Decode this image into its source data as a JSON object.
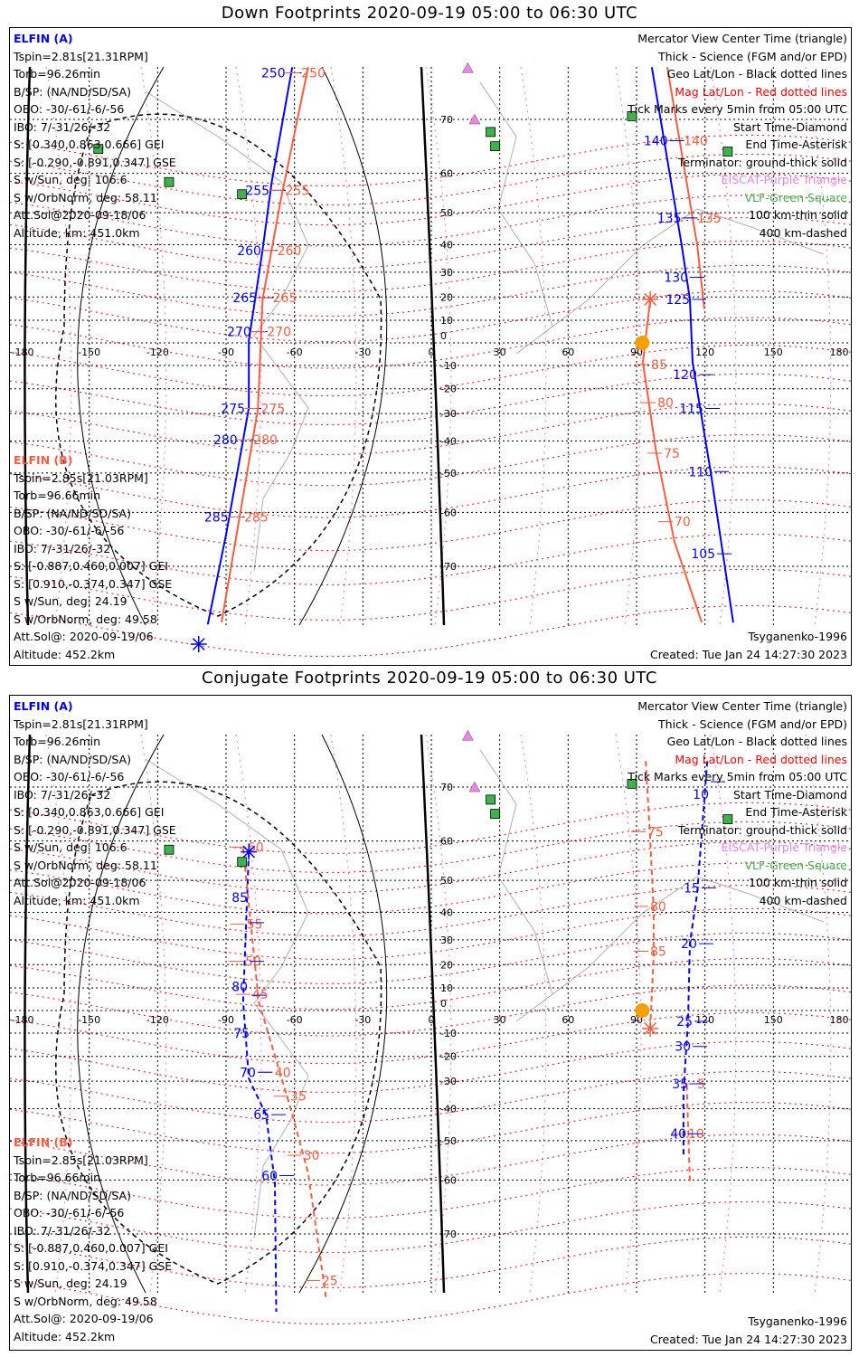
{
  "colors": {
    "elfin_a": "#0000ff",
    "elfin_b": "#ff5a3c",
    "mag_grid": "#ff0000",
    "geo_grid": "#000000",
    "eiscat": "#ee82ee",
    "vlf": "#3cb44b",
    "sun": "#f5a000",
    "coast": "#b0b0b0"
  },
  "panels": [
    {
      "title": "Down Footprints 2020-09-19 05:00 to 06:30 UTC",
      "line_style": "solid",
      "elfin_a": {
        "header": "ELFIN (A)",
        "lines": [
          "Tspin=2.81s[21.31RPM]",
          "Torb=96.26min",
          "B/SP: (NA/ND/SD/SA)",
          "OBO: -30/-61/-6/-56",
          "IBO: 7/-31/26/-32",
          "S: [0.340,0.863,0.666] GEI",
          "S: [-0.290,-0.891,0.347] GSE",
          "S w/Sun, deg: 106.6",
          "S w/OrbNorm, deg: 58.11",
          "Att.Sol@2020-09-18/06",
          "Altitude, km: 451.0km"
        ]
      },
      "elfin_b": {
        "header": "ELFIN (B)",
        "lines": [
          "Tspin=2.85s[21.03RPM]",
          "Torb=96.66min",
          "B/SP: (NA/ND/SD/SA)",
          "OBO: -30/-61/-6/-56",
          "IBO: 7/-31/26/-32",
          "S: [-0.887,0.460,0.007] GEI",
          "S: [0.910,-0.374,0.347] GSE",
          "S w/Sun, deg: 24.19",
          "S w/OrbNorm, deg: 49.58",
          "Att.Sol@: 2020-09-19/06",
          "Altitude: 452.2km"
        ]
      },
      "legend": [
        "Mercator View Center Time (triangle)",
        "Thick - Science (FGM and/or EPD)",
        "Geo Lat/Lon - Black dotted lines",
        "Mag Lat/Lon - Red dotted lines",
        "Tick Marks every 5min from 05:00 UTC",
        "Start Time-Diamond",
        "End Time-Asterisk",
        "Terminator: ground-thick solid",
        "EISCAT-Purple Triangle",
        "VLF-Green Square",
        "100 km-thin solid",
        "400 km-dashed"
      ],
      "model": "Tsyganenko-1996",
      "created": "Created: Tue Jan 24 14:27:30 2023"
    },
    {
      "title": "Conjugate Footprints 2020-09-19 05:00 to 06:30 UTC",
      "line_style": "dashed",
      "elfin_a": {
        "header": "ELFIN (A)",
        "lines": [
          "Tspin=2.81s[21.31RPM]",
          "Torb=96.26min",
          "B/SP: (NA/ND/SD/SA)",
          "OBO: -30/-61/-6/-56",
          "IBO: 7/-31/26/-32",
          "S: [0.340,0.863,0.666] GEI",
          "S: [-0.290,-0.891,0.347] GSE",
          "S w/Sun, deg: 106.6",
          "S w/OrbNorm, deg: 58.11",
          "Att.Sol@2020-09-18/06",
          "Altitude, km: 451.0km"
        ]
      },
      "elfin_b": {
        "header": "ELFIN (B)",
        "lines": [
          "Tspin=2.85s[21.03RPM]",
          "Torb=96.66min",
          "B/SP: (NA/ND/SD/SA)",
          "OBO: -30/-61/-6/-56",
          "IBO: 7/-31/26/-32",
          "S: [-0.887,0.460,0.007] GEI",
          "S: [0.910,-0.374,0.347] GSE",
          "S w/Sun, deg: 24.19",
          "S w/OrbNorm, deg: 49.58",
          "Att.Sol@: 2020-09-19/06",
          "Altitude: 452.2km"
        ]
      },
      "legend": [
        "Mercator View Center Time (triangle)",
        "Thick - Science (FGM and/or EPD)",
        "Geo Lat/Lon - Black dotted lines",
        "Mag Lat/Lon - Red dotted lines",
        "Tick Marks every 5min from 05:00 UTC",
        "Start Time-Diamond",
        "End Time-Asterisk",
        "Terminator: ground-thick solid",
        "EISCAT-Purple Triangle",
        "VLF-Green Square",
        "100 km-thin solid",
        "400 km-dashed"
      ],
      "model": "Tsyganenko-1996",
      "created": "Created: Tue Jan 24 14:27:30 2023"
    }
  ],
  "chart_data": [
    {
      "type": "line",
      "projection": "mercator",
      "title": "Down Footprints 2020-09-19 05:00 to 06:30 UTC",
      "xlim": [
        -180,
        180
      ],
      "ylim": [
        -80,
        80
      ],
      "lon_ticks": [
        "-180",
        "-150",
        "-120",
        "-90",
        "-60",
        "-30",
        "0",
        "30",
        "60",
        "90",
        "120",
        "150",
        "180"
      ],
      "lat_ticks": [
        "70",
        "60",
        "50",
        "40",
        "30",
        "20",
        "10",
        "0",
        "-10",
        "-20",
        "-30",
        "-40",
        "-50",
        "-60",
        "-70"
      ],
      "series": [
        {
          "name": "ELFIN A",
          "color": "elfin_a",
          "segments": [
            [
              [
                -61,
                76.6
              ],
              [
                -70,
                58
              ],
              [
                -74,
                38.2
              ],
              [
                -80,
                1
              ],
              [
                -80,
                -27.8
              ],
              [
                -85,
                -49.6
              ],
              [
                -90,
                -64.6
              ],
              [
                -98,
                -77.2
              ]
            ],
            [
              [
                96.7,
                76.6
              ],
              [
                109.8,
                39.8
              ],
              [
                113.4,
                19
              ],
              [
                114.6,
                -8.8
              ],
              [
                122.5,
                -49.6
              ],
              [
                132.4,
                -77
              ]
            ]
          ]
        },
        {
          "name": "ELFIN B",
          "color": "elfin_b",
          "segments": [
            [
              [
                -54,
                76.6
              ],
              [
                -66,
                53.5
              ],
              [
                -74,
                19
              ],
              [
                -76,
                -28
              ],
              [
                -82,
                -54.4
              ],
              [
                -92,
                -77
              ]
            ],
            [
              [
                103.5,
                76.6
              ],
              [
                116.6,
                39.8
              ],
              [
                119.7,
                15
              ]
            ],
            [
              [
                96,
                19
              ],
              [
                92.8,
                -8.8
              ],
              [
                98.7,
                -44
              ],
              [
                106.7,
                -66
              ],
              [
                118.6,
                -77
              ]
            ]
          ]
        }
      ],
      "tick_labels": [
        {
          "t": "250",
          "lon": -60,
          "lat": 76,
          "c": "elfin_a"
        },
        {
          "t": "250",
          "lon": -61,
          "lat": 76,
          "c": "elfin_b"
        },
        {
          "t": "255",
          "lon": -67,
          "lat": 56,
          "c": "elfin_a"
        },
        {
          "t": "255",
          "lon": -68,
          "lat": 56,
          "c": "elfin_b"
        },
        {
          "t": "260",
          "lon": -70.6,
          "lat": 38,
          "c": "elfin_a"
        },
        {
          "t": "260",
          "lon": -71.5,
          "lat": 38,
          "c": "elfin_b"
        },
        {
          "t": "265",
          "lon": -72.5,
          "lat": 19.7,
          "c": "elfin_a"
        },
        {
          "t": "265",
          "lon": -73.5,
          "lat": 19.7,
          "c": "elfin_b"
        },
        {
          "t": "270",
          "lon": -75,
          "lat": 5,
          "c": "elfin_a"
        },
        {
          "t": "270",
          "lon": -76,
          "lat": 5,
          "c": "elfin_b"
        },
        {
          "t": "275",
          "lon": -77.7,
          "lat": -28,
          "c": "elfin_a"
        },
        {
          "t": "275",
          "lon": -78.7,
          "lat": -28,
          "c": "elfin_b"
        },
        {
          "t": "280",
          "lon": -81,
          "lat": -39.5,
          "c": "elfin_a"
        },
        {
          "t": "280",
          "lon": -82,
          "lat": -39.5,
          "c": "elfin_b"
        },
        {
          "t": "285",
          "lon": -85,
          "lat": -61,
          "c": "elfin_a"
        },
        {
          "t": "285",
          "lon": -86,
          "lat": -61,
          "c": "elfin_b"
        },
        {
          "t": "140",
          "lon": 106.7,
          "lat": 66.5,
          "c": "elfin_b"
        },
        {
          "t": "140",
          "lon": 107.7,
          "lat": 66.5,
          "c": "elfin_a"
        },
        {
          "t": "135",
          "lon": 112.6,
          "lat": 48.5,
          "c": "elfin_b"
        },
        {
          "t": "135",
          "lon": 113.6,
          "lat": 48.5,
          "c": "elfin_a"
        },
        {
          "t": "130",
          "lon": 116.6,
          "lat": 28,
          "c": "elfin_a"
        },
        {
          "t": "125",
          "lon": 117.4,
          "lat": 19,
          "c": "elfin_a"
        },
        {
          "t": "120",
          "lon": 120.5,
          "lat": -14,
          "c": "elfin_a"
        },
        {
          "t": "115",
          "lon": 123.3,
          "lat": -28,
          "c": "elfin_a"
        },
        {
          "t": "110",
          "lon": 127.3,
          "lat": -49.6,
          "c": "elfin_a"
        },
        {
          "t": "105",
          "lon": 128.5,
          "lat": -68,
          "c": "elfin_a"
        },
        {
          "t": "85",
          "lon": 92.4,
          "lat": -9.6,
          "c": "elfin_b"
        },
        {
          "t": "80",
          "lon": 95.2,
          "lat": -25.7,
          "c": "elfin_b"
        },
        {
          "t": "75",
          "lon": 98,
          "lat": -44,
          "c": "elfin_b"
        },
        {
          "t": "70",
          "lon": 102.7,
          "lat": -62,
          "c": "elfin_b"
        }
      ],
      "end_markers": [
        {
          "lon": -102,
          "lat": -79,
          "c": "elfin_a"
        },
        {
          "lon": 96,
          "lat": 19,
          "c": "elfin_b"
        }
      ],
      "sun": {
        "lon": 92.5,
        "lat": 0
      },
      "eiscat": [
        [
          16,
          76.5
        ],
        [
          19,
          70
        ]
      ],
      "vlf": [
        [
          -146,
          65
        ],
        [
          -115,
          58
        ],
        [
          -83,
          55
        ],
        [
          26,
          68
        ],
        [
          28,
          65.5
        ],
        [
          88,
          70.5
        ],
        [
          130,
          64.5
        ]
      ]
    },
    {
      "type": "line",
      "projection": "mercator",
      "title": "Conjugate Footprints 2020-09-19 05:00 to 06:30 UTC",
      "xlim": [
        -180,
        180
      ],
      "ylim": [
        -80,
        80
      ],
      "lon_ticks": [
        "-180",
        "-150",
        "-120",
        "-90",
        "-60",
        "-30",
        "0",
        "30",
        "60",
        "90",
        "120",
        "150",
        "180"
      ],
      "lat_ticks": [
        "70",
        "60",
        "50",
        "40",
        "30",
        "20",
        "10",
        "0",
        "-10",
        "-20",
        "-30",
        "-40",
        "-50",
        "-60",
        "-70"
      ],
      "series": [
        {
          "name": "ELFIN A",
          "color": "elfin_a",
          "segments": [
            [
              [
                -80,
                57.5
              ],
              [
                -82.5,
                4
              ],
              [
                -80,
                -29
              ],
              [
                -72.5,
                -42
              ],
              [
                -68.6,
                -60.5
              ],
              [
                -68,
                -79
              ]
            ],
            [
              [
                121,
                73.6
              ],
              [
                116.6,
                46.3
              ],
              [
                113.4,
                28.8
              ],
              [
                112.6,
                -4
              ],
              [
                110.6,
                -34
              ],
              [
                110.6,
                -54
              ]
            ]
          ]
        },
        {
          "name": "ELFIN B",
          "color": "elfin_b",
          "segments": [
            [
              [
                -82.5,
                58.3
              ],
              [
                -75.7,
                4
              ],
              [
                -62,
                -39
              ],
              [
                -54,
                -58.4
              ],
              [
                -46,
                -78
              ]
            ],
            [
              [
                94,
                73.6
              ],
              [
                96,
                60.5
              ],
              [
                97.5,
                40.4
              ],
              [
                97.5,
                23.5
              ],
              [
                96,
                -8
              ]
            ],
            [
              [
                112,
                -31.5
              ],
              [
                113.4,
                -60.5
              ]
            ]
          ]
        }
      ],
      "tick_labels": [
        {
          "t": "60",
          "lon": -84.5,
          "lat": 58.6,
          "c": "elfin_b"
        },
        {
          "t": "55",
          "lon": -85,
          "lat": 35.8,
          "c": "elfin_b"
        },
        {
          "t": "50",
          "lon": -85.6,
          "lat": 21.4,
          "c": "elfin_b"
        },
        {
          "t": "45",
          "lon": -82.5,
          "lat": 7.2,
          "c": "elfin_b"
        },
        {
          "t": "40",
          "lon": -72.6,
          "lat": -26.5,
          "c": "elfin_b"
        },
        {
          "t": "35",
          "lon": -65.8,
          "lat": -35.6,
          "c": "elfin_b"
        },
        {
          "t": "30",
          "lon": -60,
          "lat": -54,
          "c": "elfin_b"
        },
        {
          "t": "25",
          "lon": -52,
          "lat": -76,
          "c": "elfin_b"
        },
        {
          "t": "85",
          "lon": -76.5,
          "lat": 36.4,
          "c": "elfin_a"
        },
        {
          "t": "80",
          "lon": -76.5,
          "lat": 21.4,
          "c": "elfin_a"
        },
        {
          "t": "75",
          "lon": -75.7,
          "lat": 6.8,
          "c": "elfin_a"
        },
        {
          "t": "70",
          "lon": -73,
          "lat": -26.5,
          "c": "elfin_a"
        },
        {
          "t": "65",
          "lon": -67,
          "lat": -42,
          "c": "elfin_a"
        },
        {
          "t": "60",
          "lon": -63.4,
          "lat": -59,
          "c": "elfin_a"
        },
        {
          "t": "75",
          "lon": 90.8,
          "lat": 62,
          "c": "elfin_b"
        },
        {
          "t": "80",
          "lon": 92,
          "lat": 42,
          "c": "elfin_b"
        },
        {
          "t": "85",
          "lon": 92,
          "lat": 25.5,
          "c": "elfin_b"
        },
        {
          "t": "5",
          "lon": 112.6,
          "lat": -31,
          "c": "elfin_b"
        },
        {
          "t": "10",
          "lon": 108.6,
          "lat": -48,
          "c": "elfin_b"
        },
        {
          "t": "10",
          "lon": 125.7,
          "lat": 70.8,
          "c": "elfin_a"
        },
        {
          "t": "15",
          "lon": 121.7,
          "lat": 47.8,
          "c": "elfin_a"
        },
        {
          "t": "20",
          "lon": 120.5,
          "lat": 28.5,
          "c": "elfin_a"
        },
        {
          "t": "25",
          "lon": 118.6,
          "lat": -4.8,
          "c": "elfin_a"
        },
        {
          "t": "30",
          "lon": 117.8,
          "lat": -15.8,
          "c": "elfin_a"
        },
        {
          "t": "35",
          "lon": 116.6,
          "lat": -31,
          "c": "elfin_a"
        },
        {
          "t": "40",
          "lon": 115.8,
          "lat": -48,
          "c": "elfin_a"
        }
      ],
      "end_markers": [
        {
          "lon": -80,
          "lat": 57.5,
          "c": "elfin_a"
        },
        {
          "lon": 96,
          "lat": -8,
          "c": "elfin_b"
        }
      ],
      "sun": {
        "lon": 92.5,
        "lat": 0
      },
      "eiscat": [
        [
          16,
          76.5
        ],
        [
          19,
          70
        ]
      ],
      "vlf": [
        [
          -115,
          58
        ],
        [
          -83,
          55
        ],
        [
          26,
          68
        ],
        [
          28,
          65.5
        ],
        [
          88,
          70.5
        ],
        [
          130,
          64.5
        ]
      ]
    }
  ]
}
